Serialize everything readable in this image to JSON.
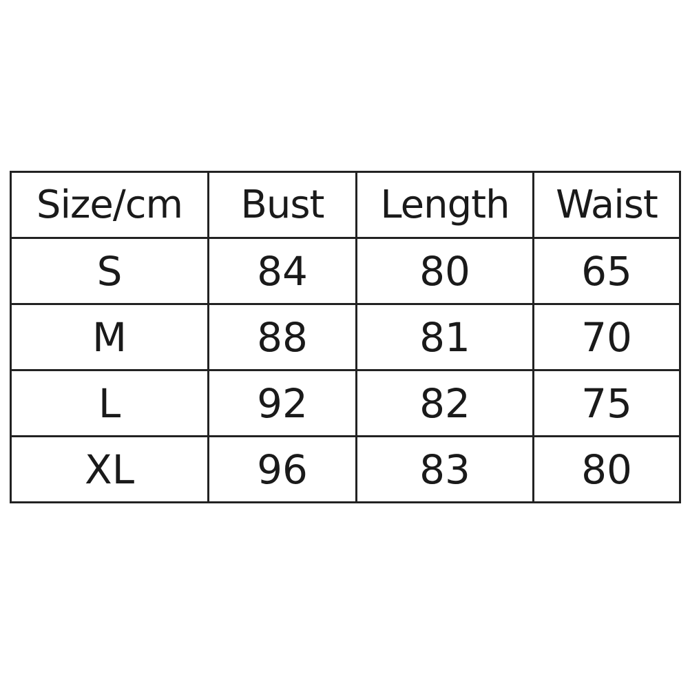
{
  "table": {
    "headers": [
      "Size/cm",
      "Bust",
      "Length",
      "Waist"
    ],
    "rows": [
      [
        "S",
        "84",
        "80",
        "65"
      ],
      [
        "M",
        "88",
        "81",
        "70"
      ],
      [
        "L",
        "92",
        "82",
        "75"
      ],
      [
        "XL",
        "96",
        "83",
        "80"
      ]
    ]
  }
}
